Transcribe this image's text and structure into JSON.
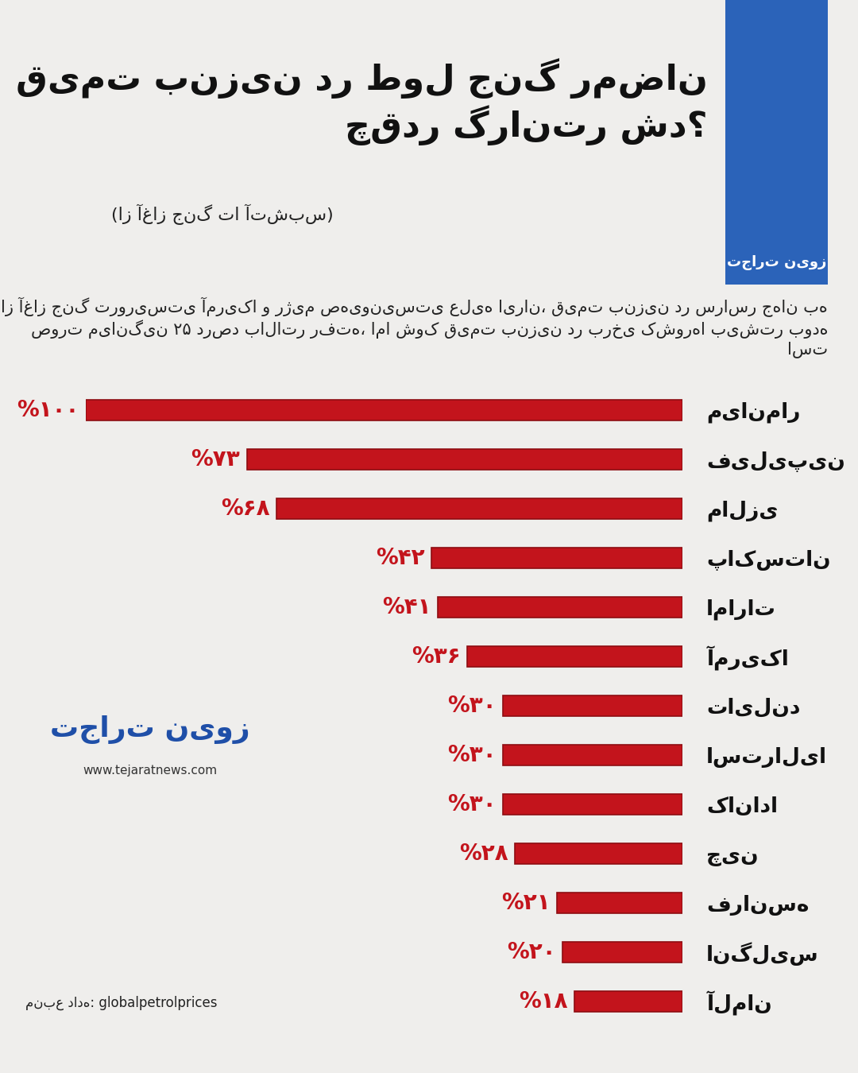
{
  "chart_data": {
    "type": "bar",
    "orientation": "horizontal",
    "title": "قیمت بنزین در طول جنگ رمضان چقدر گران‌تر شد؟",
    "subtitle": "(از آغاز جنگ تا آتش‌بس)",
    "description": "از آغاز جنگ تروریستی آمریکا و رژیم صهیونیستی علیه ایران، قیمت بنزین در سراسر جهان به صورت میانگین ۲۵ درصد بالاتر رفته، اما شوک قیمت بنزین در برخی کشورها بیشتر بوده است",
    "source": "منبع داده: globalpetrolprices",
    "brand": "تجارت نیوز",
    "website": "www.tejaratnews.com",
    "categories": [
      "میانمار",
      "فیلیپین",
      "مالزی",
      "پاکستان",
      "امارات",
      "آمریکا",
      "تایلند",
      "استرالیا",
      "کانادا",
      "چین",
      "فرانسه",
      "انگلیس",
      "آلمان"
    ],
    "values": [
      100,
      73,
      68,
      42,
      41,
      36,
      30,
      30,
      30,
      28,
      21,
      20,
      18
    ],
    "value_labels": [
      "%۱۰۰",
      "%۷۳",
      "%۶۸",
      "%۴۲",
      "%۴۱",
      "%۳۶",
      "%۳۰",
      "%۳۰",
      "%۳۰",
      "%۲۸",
      "%۲۱",
      "%۲۰",
      "%۱۸"
    ],
    "color": "#c3141c",
    "xlim": [
      0,
      100
    ],
    "xticks": [],
    "data_labels": true,
    "tick_labels": "y",
    "grid": false
  }
}
